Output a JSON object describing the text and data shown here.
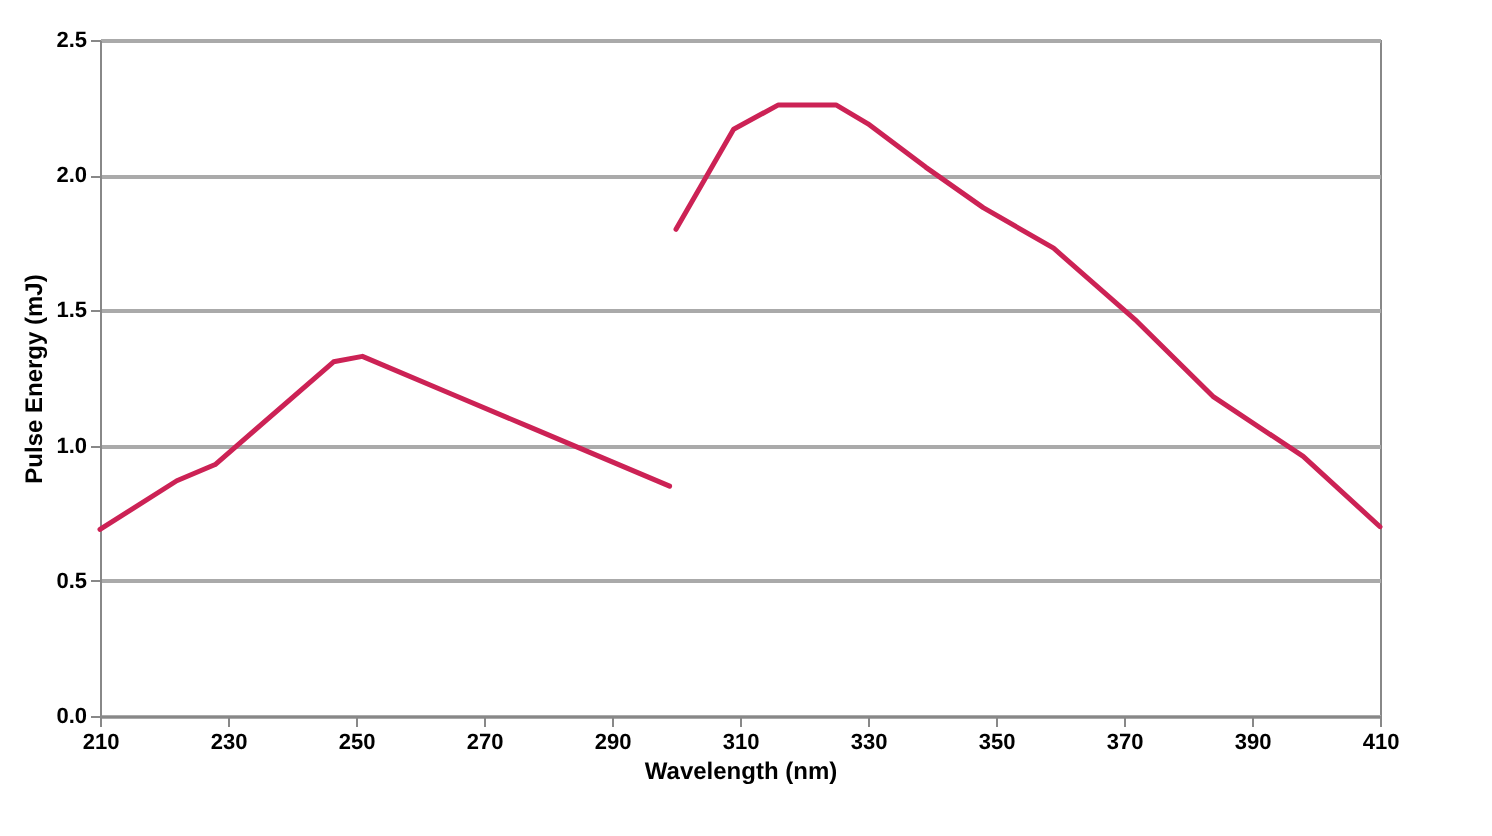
{
  "chart_data": {
    "type": "line",
    "xlabel": "Wavelength (nm)",
    "ylabel": "Pulse Energy (mJ)",
    "xlim": [
      210,
      410
    ],
    "xticks": [
      210,
      230,
      250,
      270,
      290,
      310,
      330,
      350,
      370,
      390,
      410
    ],
    "ylim": [
      0,
      2.5
    ],
    "yticks": [
      {
        "value": 0,
        "label": "0.0"
      },
      {
        "value": 0.5,
        "label": "0.5"
      },
      {
        "value": 1,
        "label": "1.0"
      },
      {
        "value": 1.5,
        "label": "1.5"
      },
      {
        "value": 2,
        "label": "2.0"
      },
      {
        "value": 2.5,
        "label": "2.5"
      }
    ],
    "grid": "y",
    "line_style": "solid",
    "marker": "none",
    "series": [
      {
        "color": "#cc2255",
        "x": [
          210,
          222,
          228,
          246.5,
          251,
          265,
          277,
          299
        ],
        "values": [
          0.69,
          0.87,
          0.93,
          1.31,
          1.33,
          1.19,
          1.07,
          0.85
        ]
      },
      {
        "color": "#cc2255",
        "x": [
          300,
          309,
          316,
          325,
          330,
          339,
          348,
          359,
          372,
          384,
          398,
          410
        ],
        "values": [
          1.8,
          2.17,
          2.26,
          2.26,
          2.19,
          2.03,
          1.88,
          1.73,
          1.46,
          1.18,
          0.96,
          0.7
        ]
      }
    ]
  }
}
